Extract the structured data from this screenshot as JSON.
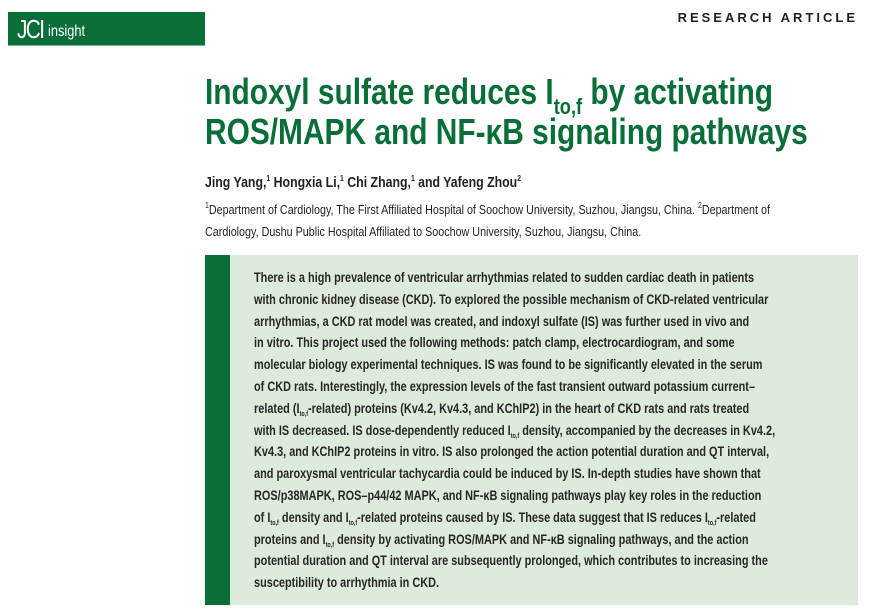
{
  "header": {
    "logo_main": "JCI",
    "logo_sub": "insight",
    "article_type": "RESEARCH ARTICLE",
    "brand_color": "#0a6e39"
  },
  "title": {
    "line1": [
      {
        "t": "Indoxyl sulfate reduces I"
      },
      {
        "t": "to,f",
        "sub": true
      },
      {
        "t": " by activating"
      }
    ],
    "line2": [
      {
        "t": "ROS/MAPK and NF-κB signaling pathways"
      }
    ]
  },
  "authors": [
    {
      "name": "Jing Yang,",
      "aff": "1"
    },
    {
      "name": " Hongxia Li,",
      "aff": "1"
    },
    {
      "name": " Chi Zhang,",
      "aff": "1"
    },
    {
      "name": " and Yafeng Zhou",
      "aff": "2"
    }
  ],
  "affiliations": {
    "line1": [
      {
        "sup": "1"
      },
      {
        "t": "Department of Cardiology, The First Affiliated Hospital of Soochow University, Suzhou, Jiangsu, China. "
      },
      {
        "sup": "2"
      },
      {
        "t": "Department of"
      }
    ],
    "line2": [
      {
        "t": "Cardiology, Dushu Public Hospital Affiliated to Soochow University, Suzhou, Jiangsu, China."
      }
    ]
  },
  "abstract": [
    [
      {
        "t": "There is a high prevalence of ventricular arrhythmias related to sudden cardiac death in patients"
      }
    ],
    [
      {
        "t": "with chronic kidney disease (CKD). To explored the possible mechanism of CKD-related ventricular"
      }
    ],
    [
      {
        "t": "arrhythmias, a CKD rat model was created, and indoxyl sulfate (IS) was further used in vivo and"
      }
    ],
    [
      {
        "t": "in vitro. This project used the following methods: patch clamp, electrocardiogram, and some"
      }
    ],
    [
      {
        "t": "molecular biology experimental techniques. IS was found to be significantly elevated in the serum"
      }
    ],
    [
      {
        "t": "of CKD rats. Interestingly, the expression levels of the fast transient outward potassium current–"
      }
    ],
    [
      {
        "t": "related (I"
      },
      {
        "t": "to,f",
        "sub": true
      },
      {
        "t": "-related) proteins (Kv4.2, Kv4.3, and KChIP2) in the heart of CKD rats and rats treated"
      }
    ],
    [
      {
        "t": "with IS decreased. IS dose-dependently reduced I"
      },
      {
        "t": "to,f",
        "sub": true
      },
      {
        "t": " density, accompanied by the decreases in Kv4.2,"
      }
    ],
    [
      {
        "t": "Kv4.3, and KChIP2 proteins in vitro. IS also prolonged the action potential duration and QT interval,"
      }
    ],
    [
      {
        "t": "and paroxysmal ventricular tachycardia could be induced by IS. In-depth studies have shown that"
      }
    ],
    [
      {
        "t": "ROS/p38MAPK, ROS–p44/42 MAPK, and NF-κB signaling pathways play key roles in the reduction"
      }
    ],
    [
      {
        "t": "of I"
      },
      {
        "t": "to,f",
        "sub": true
      },
      {
        "t": " density and I"
      },
      {
        "t": "to,f",
        "sub": true
      },
      {
        "t": "-related proteins caused by IS. These data suggest that IS reduces I"
      },
      {
        "t": "to,f",
        "sub": true
      },
      {
        "t": "-related"
      }
    ],
    [
      {
        "t": "proteins and I"
      },
      {
        "t": "to,f",
        "sub": true
      },
      {
        "t": " density by activating ROS/MAPK and NF-κB signaling pathways, and the action"
      }
    ],
    [
      {
        "t": "potential duration and QT interval are subsequently prolonged, which contributes to increasing the"
      }
    ],
    [
      {
        "t": "susceptibility to arrhythmia in CKD."
      }
    ]
  ]
}
